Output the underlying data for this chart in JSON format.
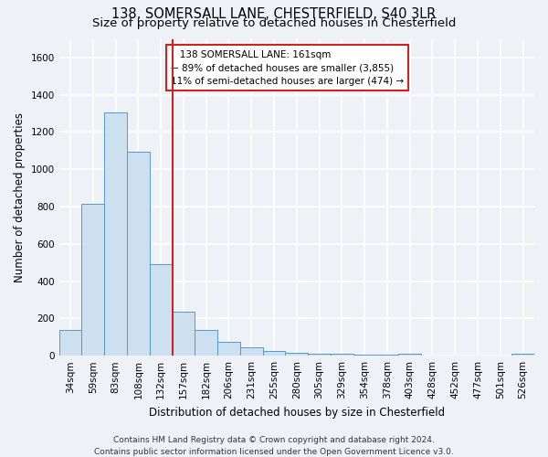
{
  "title": "138, SOMERSALL LANE, CHESTERFIELD, S40 3LR",
  "subtitle": "Size of property relative to detached houses in Chesterfield",
  "xlabel": "Distribution of detached houses by size in Chesterfield",
  "ylabel": "Number of detached properties",
  "footer_line1": "Contains HM Land Registry data © Crown copyright and database right 2024.",
  "footer_line2": "Contains public sector information licensed under the Open Government Licence v3.0.",
  "annotation_line1": "   138 SOMERSALL LANE: 161sqm",
  "annotation_line2": "← 89% of detached houses are smaller (3,855)",
  "annotation_line3": "11% of semi-detached houses are larger (474) →",
  "bin_labels": [
    "34sqm",
    "59sqm",
    "83sqm",
    "108sqm",
    "132sqm",
    "157sqm",
    "182sqm",
    "206sqm",
    "231sqm",
    "255sqm",
    "280sqm",
    "305sqm",
    "329sqm",
    "354sqm",
    "378sqm",
    "403sqm",
    "428sqm",
    "452sqm",
    "477sqm",
    "501sqm",
    "526sqm"
  ],
  "bar_values": [
    140,
    815,
    1305,
    1095,
    490,
    235,
    140,
    75,
    45,
    25,
    15,
    10,
    10,
    8,
    5,
    10,
    0,
    0,
    0,
    0,
    10
  ],
  "bar_color": "#cce0f0",
  "bar_edge_color": "#5599cc",
  "red_line_index": 5,
  "ylim": [
    0,
    1700
  ],
  "yticks": [
    0,
    200,
    400,
    600,
    800,
    1000,
    1200,
    1400,
    1600
  ],
  "background_color": "#eef2f7",
  "grid_color": "#ffffff",
  "annotation_box_facecolor": "#ffffff",
  "annotation_box_edgecolor": "#cc2222",
  "red_line_color": "#cc2222",
  "title_fontsize": 10.5,
  "subtitle_fontsize": 9.5,
  "axis_label_fontsize": 8.5,
  "tick_fontsize": 7.5,
  "annotation_fontsize": 7.5,
  "footer_fontsize": 6.5
}
